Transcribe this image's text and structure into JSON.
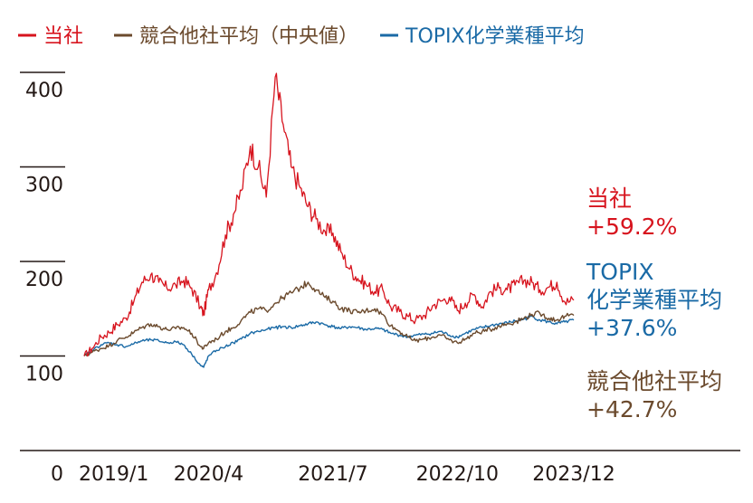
{
  "chart_data": {
    "type": "line",
    "title": "",
    "xlabel": "",
    "ylabel": "",
    "ylim": [
      0,
      400
    ],
    "y_ticks": [
      {
        "value": 0,
        "label": "0"
      },
      {
        "value": 100,
        "label": "100"
      },
      {
        "value": 200,
        "label": "200"
      },
      {
        "value": 300,
        "label": "300"
      },
      {
        "value": 400,
        "label": "400"
      }
    ],
    "x_range": [
      2019.0,
      2023.92
    ],
    "x_ticks": [
      {
        "value": 2019.0,
        "label": "2019/1"
      },
      {
        "value": 2020.25,
        "label": "2020/4"
      },
      {
        "value": 2021.5,
        "label": "2021/7"
      },
      {
        "value": 2022.75,
        "label": "2022/10"
      },
      {
        "value": 2023.92,
        "label": "2023/12"
      }
    ],
    "legend_position": "top-left",
    "series": [
      {
        "name": "当社",
        "color": "#d7141e",
        "annotation_lines": [
          "当社",
          "+59.2%"
        ],
        "x": [
          2019.0,
          2019.08,
          2019.17,
          2019.25,
          2019.33,
          2019.42,
          2019.5,
          2019.58,
          2019.67,
          2019.75,
          2019.83,
          2019.92,
          2020.0,
          2020.08,
          2020.17,
          2020.2,
          2020.25,
          2020.33,
          2020.42,
          2020.5,
          2020.58,
          2020.67,
          2020.75,
          2020.83,
          2020.92,
          2021.0,
          2021.08,
          2021.17,
          2021.25,
          2021.33,
          2021.42,
          2021.5,
          2021.58,
          2021.67,
          2021.75,
          2021.83,
          2021.92,
          2022.0,
          2022.08,
          2022.17,
          2022.25,
          2022.33,
          2022.42,
          2022.5,
          2022.58,
          2022.67,
          2022.75,
          2022.83,
          2022.92,
          2023.0,
          2023.08,
          2023.17,
          2023.25,
          2023.33,
          2023.42,
          2023.5,
          2023.58,
          2023.67,
          2023.75,
          2023.83,
          2023.92
        ],
        "values": [
          100,
          108,
          120,
          125,
          133,
          140,
          158,
          178,
          186,
          178,
          172,
          175,
          180,
          172,
          152,
          144,
          170,
          188,
          228,
          250,
          275,
          322,
          300,
          268,
          395,
          345,
          300,
          278,
          258,
          245,
          232,
          230,
          210,
          192,
          182,
          176,
          168,
          170,
          152,
          147,
          142,
          138,
          143,
          153,
          158,
          162,
          148,
          156,
          165,
          152,
          168,
          172,
          170,
          175,
          180,
          178,
          170,
          173,
          178,
          157,
          159
        ]
      },
      {
        "name": "競合他社平均（中央値）",
        "color": "#6b4a2d",
        "annotation_lines": [
          "競合他社平均",
          "+42.7%"
        ],
        "x": [
          2019.0,
          2019.08,
          2019.17,
          2019.25,
          2019.33,
          2019.42,
          2019.5,
          2019.58,
          2019.67,
          2019.75,
          2019.83,
          2019.92,
          2020.0,
          2020.08,
          2020.17,
          2020.2,
          2020.25,
          2020.33,
          2020.42,
          2020.5,
          2020.58,
          2020.67,
          2020.75,
          2020.83,
          2020.92,
          2021.0,
          2021.08,
          2021.17,
          2021.25,
          2021.33,
          2021.42,
          2021.5,
          2021.58,
          2021.67,
          2021.75,
          2021.83,
          2021.92,
          2022.0,
          2022.08,
          2022.17,
          2022.25,
          2022.33,
          2022.42,
          2022.5,
          2022.58,
          2022.67,
          2022.75,
          2022.83,
          2022.92,
          2023.0,
          2023.08,
          2023.17,
          2023.25,
          2023.33,
          2023.42,
          2023.5,
          2023.58,
          2023.67,
          2023.75,
          2023.83,
          2023.92
        ],
        "values": [
          100,
          104,
          108,
          111,
          116,
          120,
          125,
          130,
          134,
          131,
          128,
          129,
          130,
          124,
          110,
          108,
          114,
          118,
          126,
          130,
          138,
          146,
          150,
          148,
          156,
          162,
          167,
          172,
          178,
          170,
          162,
          158,
          150,
          148,
          146,
          148,
          150,
          144,
          132,
          126,
          120,
          116,
          118,
          120,
          122,
          117,
          114,
          118,
          124,
          126,
          128,
          132,
          134,
          136,
          140,
          144,
          145,
          140,
          138,
          142,
          143
        ]
      },
      {
        "name": "TOPIX化学業種平均",
        "color": "#1a6aa6",
        "annotation_lines": [
          "TOPIX",
          "化学業種平均",
          "+37.6%"
        ],
        "x": [
          2019.0,
          2019.08,
          2019.17,
          2019.25,
          2019.33,
          2019.42,
          2019.5,
          2019.58,
          2019.67,
          2019.75,
          2019.83,
          2019.92,
          2020.0,
          2020.08,
          2020.17,
          2020.2,
          2020.25,
          2020.33,
          2020.42,
          2020.5,
          2020.58,
          2020.67,
          2020.75,
          2020.83,
          2020.92,
          2021.0,
          2021.08,
          2021.17,
          2021.25,
          2021.33,
          2021.42,
          2021.5,
          2021.58,
          2021.67,
          2021.75,
          2021.83,
          2021.92,
          2022.0,
          2022.08,
          2022.17,
          2022.25,
          2022.33,
          2022.42,
          2022.5,
          2022.58,
          2022.67,
          2022.75,
          2022.83,
          2022.92,
          2023.0,
          2023.08,
          2023.17,
          2023.25,
          2023.33,
          2023.42,
          2023.5,
          2023.58,
          2023.67,
          2023.75,
          2023.83,
          2023.92
        ],
        "values": [
          100,
          106,
          112,
          114,
          112,
          110,
          113,
          116,
          117,
          116,
          114,
          115,
          112,
          102,
          90,
          88,
          100,
          106,
          110,
          114,
          118,
          124,
          126,
          128,
          130,
          131,
          130,
          132,
          134,
          136,
          133,
          131,
          129,
          131,
          130,
          128,
          129,
          128,
          124,
          122,
          120,
          122,
          123,
          124,
          126,
          122,
          120,
          124,
          128,
          130,
          132,
          134,
          135,
          137,
          139,
          142,
          138,
          136,
          134,
          136,
          138
        ]
      }
    ]
  }
}
